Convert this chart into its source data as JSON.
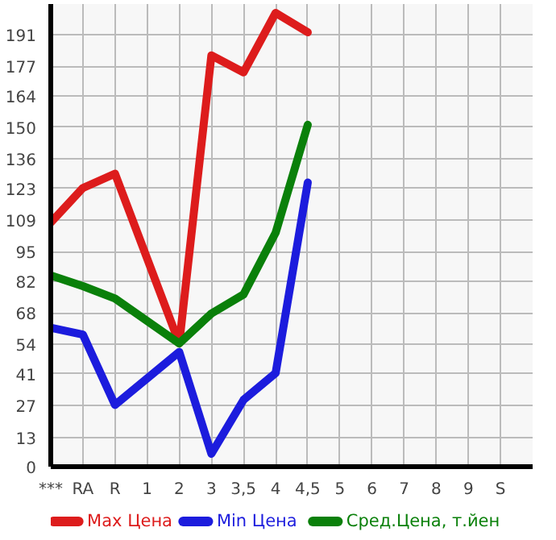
{
  "chart_data": {
    "type": "line",
    "categories": [
      "***",
      "RA",
      "R",
      "1",
      "2",
      "3",
      "3,5",
      "4",
      "4,5",
      "5",
      "6",
      "7",
      "8",
      "9",
      "S"
    ],
    "series": [
      {
        "name": "Max Цена",
        "color": "#dd1c1c",
        "values": [
          107.9,
          123.2,
          129.5,
          null,
          54.5,
          181.8,
          174.3,
          200.6,
          192.0,
          null,
          null,
          null,
          null,
          null,
          null
        ]
      },
      {
        "name": "Min Цена",
        "color": "#1c1cdd",
        "values": [
          61.4,
          58.4,
          27.3,
          null,
          50.7,
          5.7,
          29.5,
          41.4,
          125.6,
          null,
          null,
          null,
          null,
          null,
          null
        ]
      },
      {
        "name": "Сред.Цена, т.йен",
        "color": "#0a800a",
        "values": [
          84.5,
          79.8,
          74.3,
          null,
          54.5,
          67.7,
          76.1,
          103.4,
          151.1,
          null,
          null,
          null,
          null,
          null,
          null
        ]
      }
    ],
    "ylim": [
      0,
      204.5
    ],
    "yticks": [
      0,
      13,
      27,
      41,
      54,
      68,
      82,
      95,
      109,
      123,
      136,
      150,
      164,
      177,
      191
    ],
    "grid": true,
    "legend": "bottom",
    "marker": "none",
    "line_style": "solid"
  }
}
